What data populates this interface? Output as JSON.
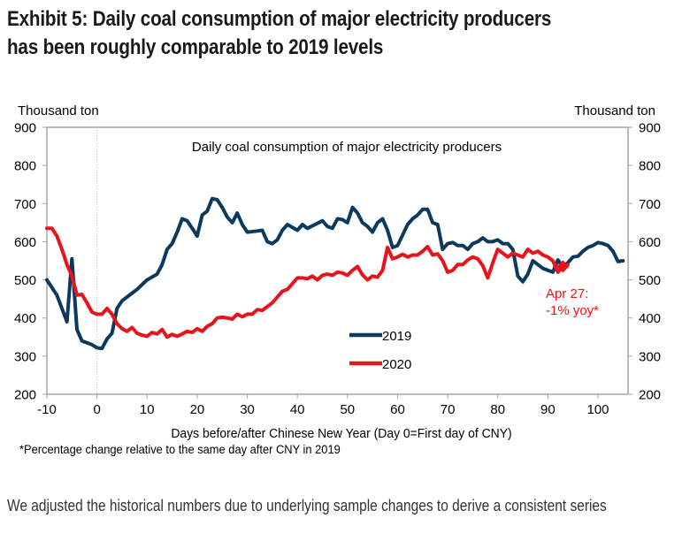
{
  "header": {
    "title_line1": "Exhibit 5: Daily coal consumption of major electricity producers",
    "title_line2": "has been roughly comparable to 2019 levels"
  },
  "footnote": "*Percentage change relative to the same day after CNY in 2019",
  "source_note": "We adjusted the historical numbers due to underlying sample changes to derive a consistent series",
  "chart_data": {
    "type": "line",
    "title": "Daily coal consumption of major electricity producers",
    "xlabel": "Days before/after Chinese New Year (Day 0=First day of CNY)",
    "ylabel_left": "Thousand ton",
    "ylabel_right": "Thousand ton",
    "xlim": [
      -10,
      106
    ],
    "ylim": [
      200,
      900
    ],
    "x_ticks": [
      -10,
      0,
      10,
      20,
      30,
      40,
      50,
      60,
      70,
      80,
      90,
      100
    ],
    "y_ticks": [
      200,
      300,
      400,
      500,
      600,
      700,
      800,
      900
    ],
    "grid": false,
    "vertical_reference_line_x": 0,
    "legend_position": "center-bottom",
    "annotation": {
      "text_line1": "Apr 27:",
      "text_line2": "-1% yoy*",
      "x": 93,
      "y": 535
    },
    "series": [
      {
        "name": "2019",
        "color": "#0b3a5e",
        "x": [
          -10,
          -8,
          -6,
          -5,
          -4,
          -3,
          -1,
          0,
          1,
          2,
          3,
          4,
          5,
          6,
          8,
          10,
          12,
          13,
          14,
          15,
          16,
          17,
          18,
          19,
          20,
          21,
          22,
          23,
          24,
          25,
          26,
          27,
          28,
          29,
          30,
          32,
          33,
          34,
          35,
          36,
          37,
          38,
          40,
          41,
          42,
          44,
          45,
          46,
          47,
          48,
          49,
          50,
          51,
          52,
          53,
          54,
          55,
          56,
          57,
          58,
          59,
          60,
          62,
          63,
          64,
          65,
          66,
          67,
          68,
          69,
          70,
          71,
          72,
          73,
          74,
          75,
          76,
          77,
          78,
          79,
          80,
          81,
          82,
          83,
          84,
          85,
          86,
          87,
          88,
          89,
          90,
          91,
          92,
          93,
          94,
          95,
          96,
          97,
          98,
          99,
          100,
          101,
          102,
          103,
          104,
          105
        ],
        "values": [
          500,
          460,
          390,
          555,
          370,
          340,
          330,
          322,
          320,
          345,
          360,
          425,
          445,
          455,
          475,
          500,
          515,
          540,
          580,
          595,
          625,
          660,
          655,
          635,
          615,
          670,
          680,
          713,
          710,
          690,
          665,
          650,
          675,
          645,
          625,
          628,
          630,
          600,
          595,
          605,
          630,
          645,
          630,
          645,
          635,
          648,
          655,
          640,
          635,
          660,
          658,
          650,
          690,
          675,
          650,
          640,
          625,
          650,
          660,
          630,
          585,
          590,
          645,
          660,
          670,
          685,
          685,
          650,
          645,
          580,
          595,
          598,
          590,
          590,
          580,
          595,
          600,
          610,
          600,
          600,
          605,
          595,
          595,
          580,
          510,
          495,
          515,
          550,
          540,
          530,
          525,
          520,
          552,
          535,
          545,
          560,
          562,
          575,
          585,
          590,
          598,
          595,
          590,
          575,
          548,
          550
        ]
      },
      {
        "name": "2020",
        "color": "#e8141b",
        "x": [
          -10,
          -9,
          -8,
          -7,
          -6,
          -5,
          -4,
          -3,
          -2,
          -1,
          0,
          1,
          2,
          3,
          4,
          5,
          6,
          7,
          8,
          9,
          10,
          11,
          12,
          13,
          14,
          15,
          16,
          17,
          18,
          19,
          20,
          21,
          22,
          23,
          24,
          25,
          26,
          27,
          28,
          29,
          30,
          31,
          32,
          33,
          34,
          35,
          36,
          37,
          38,
          39,
          40,
          41,
          42,
          43,
          44,
          45,
          46,
          47,
          48,
          49,
          50,
          51,
          52,
          53,
          54,
          55,
          56,
          57,
          58,
          59,
          60,
          61,
          62,
          63,
          64,
          65,
          66,
          67,
          68,
          69,
          70,
          71,
          72,
          73,
          74,
          75,
          76,
          77,
          78,
          79,
          80,
          81,
          82,
          83,
          84,
          85,
          86,
          87,
          88,
          89,
          90,
          91,
          92,
          93,
          94
        ],
        "values": [
          635,
          635,
          615,
          580,
          540,
          510,
          460,
          462,
          440,
          415,
          410,
          410,
          425,
          410,
          385,
          372,
          365,
          375,
          360,
          355,
          352,
          362,
          358,
          370,
          350,
          357,
          352,
          358,
          365,
          362,
          372,
          365,
          378,
          385,
          400,
          402,
          400,
          397,
          410,
          403,
          410,
          410,
          422,
          420,
          430,
          440,
          455,
          470,
          475,
          490,
          505,
          505,
          503,
          510,
          500,
          512,
          515,
          512,
          520,
          518,
          512,
          525,
          535,
          513,
          500,
          510,
          507,
          525,
          585,
          555,
          560,
          567,
          560,
          565,
          565,
          575,
          587,
          565,
          568,
          550,
          520,
          525,
          540,
          540,
          552,
          560,
          555,
          537,
          505,
          545,
          580,
          570,
          560,
          570,
          565,
          560,
          580,
          570,
          575,
          565,
          560,
          550,
          520,
          535,
          540
        ]
      }
    ]
  }
}
